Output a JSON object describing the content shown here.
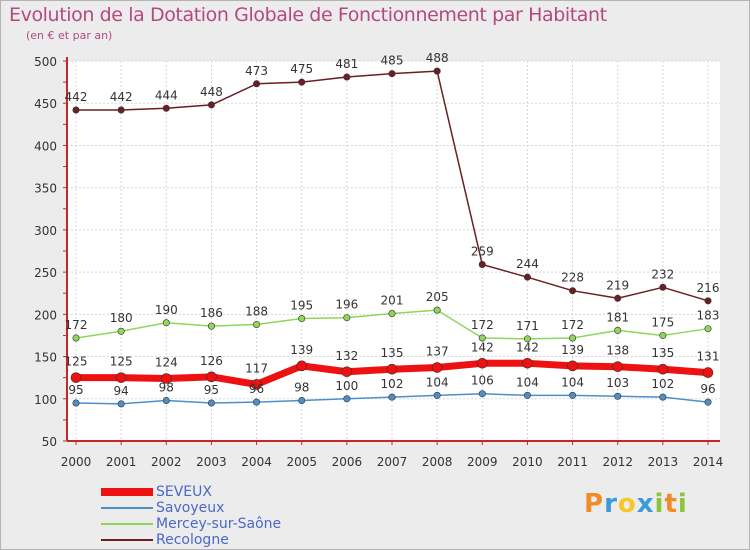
{
  "title": "Evolution de la Dotation Globale de Fonctionnement par Habitant",
  "subtitle": "(en € et par an)",
  "brand": {
    "letters": [
      {
        "ch": "P",
        "color": "#f08c28"
      },
      {
        "ch": "r",
        "color": "#3c9ad8"
      },
      {
        "ch": "o",
        "color": "#f5c828"
      },
      {
        "ch": "x",
        "color": "#3c9ad8"
      },
      {
        "ch": "i",
        "color": "#8cc43c"
      },
      {
        "ch": "t",
        "color": "#f08c28"
      },
      {
        "ch": "i",
        "color": "#8cc43c"
      }
    ]
  },
  "chart_data": {
    "type": "line",
    "title": "Evolution de la Dotation Globale de Fonctionnement par Habitant",
    "ylabel": "(en € et par an)",
    "xlabel": "",
    "ylim": [
      50,
      500
    ],
    "yticks": [
      50,
      100,
      150,
      200,
      250,
      300,
      350,
      400,
      450,
      500
    ],
    "grid": true,
    "legend_position": "bottom-left",
    "categories": [
      "2000",
      "2001",
      "2002",
      "2003",
      "2004",
      "2005",
      "2006",
      "2007",
      "2008",
      "2009",
      "2010",
      "2011",
      "2012",
      "2013",
      "2014"
    ],
    "series": [
      {
        "name": "SEVEUX",
        "color": "#ee1111",
        "values": [
          125,
          125,
          124,
          126,
          117,
          139,
          132,
          135,
          137,
          142,
          142,
          139,
          138,
          135,
          131
        ]
      },
      {
        "name": "Savoyeux",
        "color": "#4f8fc8",
        "values": [
          95,
          94,
          98,
          95,
          96,
          98,
          100,
          102,
          104,
          106,
          104,
          104,
          103,
          102,
          96
        ]
      },
      {
        "name": "Mercey-sur-Saône",
        "color": "#8fd65c",
        "values": [
          172,
          180,
          190,
          186,
          188,
          195,
          196,
          201,
          205,
          172,
          171,
          172,
          181,
          175,
          183
        ]
      },
      {
        "name": "Recologne",
        "color": "#6b1f24",
        "values": [
          442,
          442,
          444,
          448,
          473,
          475,
          481,
          485,
          488,
          259,
          244,
          228,
          219,
          232,
          216
        ]
      }
    ]
  }
}
